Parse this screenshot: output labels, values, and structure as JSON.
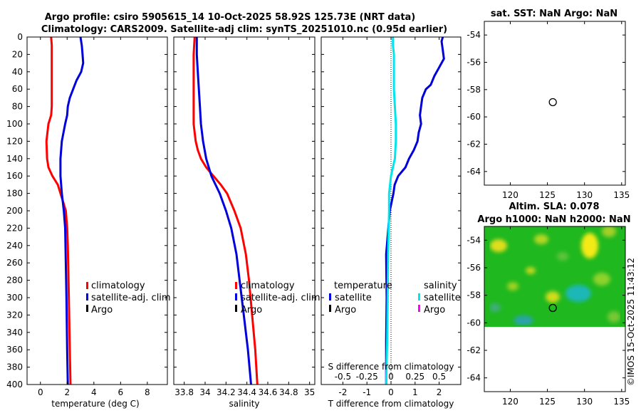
{
  "title": {
    "line1": "Argo profile: csiro 5905615_14 10-Oct-2025 58.92S 125.73E (NRT data)",
    "line2": "Climatology: CARS2009. Satellite-adj clim: synTS_20251010.nc (0.95d earlier)"
  },
  "watermark": "©IMOS 15-Oct-2025 11:43:12",
  "colors": {
    "climatology": "#ff0000",
    "satellite": "#0000dd",
    "argo": "#000000",
    "sal_satellite": "#00e5ee",
    "sal_argo": "#ff00ff"
  },
  "chart_data": [
    {
      "type": "line",
      "panel": "temperature",
      "xlabel": "temperature (deg C)",
      "ylabel": "",
      "xlim": [
        -1,
        9.5
      ],
      "ylim": [
        400,
        0
      ],
      "xticks": [
        "0",
        "2",
        "4",
        "6",
        "8"
      ],
      "yticks": [
        "0",
        "20",
        "40",
        "60",
        "80",
        "100",
        "120",
        "140",
        "160",
        "180",
        "200",
        "220",
        "240",
        "260",
        "280",
        "300",
        "320",
        "340",
        "360",
        "380",
        "400"
      ],
      "legend": [
        "climatology",
        "satellite-adj. clim",
        "Argo"
      ],
      "series": [
        {
          "name": "climatology",
          "depth": [
            0,
            10,
            20,
            40,
            60,
            80,
            90,
            100,
            120,
            140,
            150,
            160,
            170,
            180,
            190,
            200,
            220,
            240,
            280,
            320,
            360,
            400
          ],
          "values": [
            0.8,
            0.85,
            0.85,
            0.85,
            0.85,
            0.85,
            0.8,
            0.6,
            0.45,
            0.5,
            0.6,
            0.9,
            1.3,
            1.5,
            1.7,
            1.9,
            2.0,
            2.05,
            2.1,
            2.15,
            2.2,
            2.25
          ]
        },
        {
          "name": "satellite-adj. clim",
          "depth": [
            0,
            10,
            20,
            30,
            40,
            50,
            60,
            70,
            80,
            90,
            100,
            120,
            140,
            160,
            180,
            200,
            220,
            260,
            300,
            360,
            400
          ],
          "values": [
            3.0,
            3.1,
            3.15,
            3.2,
            3.05,
            2.7,
            2.45,
            2.2,
            2.05,
            2.0,
            1.85,
            1.6,
            1.5,
            1.5,
            1.6,
            1.75,
            1.85,
            1.9,
            1.95,
            2.0,
            2.05
          ]
        }
      ]
    },
    {
      "type": "line",
      "panel": "salinity",
      "xlabel": "salinity",
      "xlim": [
        33.7,
        35.05
      ],
      "ylim": [
        400,
        0
      ],
      "xticks": [
        "33.8",
        "34",
        "34.2",
        "34.4",
        "34.6",
        "34.8",
        "35"
      ],
      "legend": [
        "climatology",
        "satellite-adj. clim",
        "Argo"
      ],
      "series": [
        {
          "name": "climatology",
          "depth": [
            0,
            20,
            40,
            60,
            80,
            100,
            110,
            120,
            130,
            140,
            150,
            160,
            170,
            180,
            200,
            220,
            250,
            280,
            320,
            360,
            400
          ],
          "values": [
            33.9,
            33.89,
            33.89,
            33.89,
            33.89,
            33.89,
            33.9,
            33.91,
            33.93,
            33.96,
            34.01,
            34.08,
            34.15,
            34.21,
            34.28,
            34.34,
            34.39,
            34.42,
            34.45,
            34.48,
            34.5
          ]
        },
        {
          "name": "satellite-adj. clim",
          "depth": [
            0,
            20,
            40,
            60,
            80,
            100,
            120,
            140,
            160,
            180,
            200,
            220,
            250,
            280,
            320,
            360,
            400
          ],
          "values": [
            33.92,
            33.92,
            33.93,
            33.94,
            33.95,
            33.96,
            33.98,
            34.01,
            34.06,
            34.14,
            34.2,
            34.25,
            34.3,
            34.33,
            34.37,
            34.41,
            34.44
          ]
        }
      ]
    },
    {
      "type": "line",
      "panel": "difference",
      "xlabel": "T difference from climatology",
      "top_xlabel": "S difference from climatology",
      "xlim": [
        -2.9,
        2.9
      ],
      "ylim": [
        400,
        0
      ],
      "xticks": [
        "-2",
        "-1",
        "0",
        "1",
        "2"
      ],
      "top_xlim": [
        -0.725,
        0.725
      ],
      "top_xticks": [
        "-0.5",
        "-0.25",
        "0",
        "0.25",
        "0.5"
      ],
      "legend_left_title": "temperature",
      "legend_right_title": "salinity",
      "legend_left": [
        "satellite",
        "Argo"
      ],
      "legend_right": [
        "satellite",
        "Argo"
      ],
      "series": [
        {
          "name": "T satellite",
          "depth": [
            0,
            5,
            15,
            25,
            35,
            45,
            55,
            60,
            70,
            80,
            90,
            100,
            110,
            120,
            130,
            140,
            150,
            160,
            170,
            180,
            200,
            250,
            300,
            350,
            400
          ],
          "values": [
            2.15,
            2.1,
            2.15,
            2.2,
            2.0,
            1.8,
            1.65,
            1.45,
            1.3,
            1.25,
            1.2,
            1.25,
            1.15,
            1.1,
            0.95,
            0.75,
            0.6,
            0.3,
            0.15,
            0.1,
            -0.05,
            -0.2,
            -0.18,
            -0.2,
            -0.2
          ]
        },
        {
          "name": "S satellite",
          "depth": [
            0,
            10,
            20,
            40,
            60,
            80,
            100,
            120,
            140,
            160,
            180,
            200,
            250,
            300,
            350,
            400
          ],
          "values": [
            0.02,
            0.02,
            0.03,
            0.03,
            0.03,
            0.04,
            0.05,
            0.05,
            0.04,
            0.0,
            -0.02,
            -0.02,
            -0.03,
            -0.035,
            -0.04,
            -0.05
          ]
        }
      ]
    },
    {
      "type": "scatter",
      "panel": "sst-map",
      "title": "sat. SST: NaN Argo: NaN",
      "xlim": [
        116.5,
        135.5
      ],
      "ylim": [
        -65,
        -53
      ],
      "xticks": [
        "120",
        "125",
        "130",
        "135"
      ],
      "yticks": [
        "-54",
        "-56",
        "-58",
        "-60",
        "-62",
        "-64"
      ],
      "points": [
        {
          "lon": 125.73,
          "lat": -58.92
        }
      ]
    },
    {
      "type": "heatmap",
      "panel": "sla-map",
      "title": "Altim. SLA: 0.078",
      "subtitle": "Argo h1000: NaN h2000: NaN",
      "xlim": [
        116.5,
        135.5
      ],
      "ylim": [
        -65,
        -53
      ],
      "xticks": [
        "120",
        "125",
        "130",
        "135"
      ],
      "yticks": [
        "-54",
        "-56",
        "-58",
        "-60",
        "-62",
        "-64"
      ],
      "data_extent_lat": [
        -60,
        -53
      ],
      "points": [
        {
          "lon": 125.73,
          "lat": -58.92
        }
      ]
    }
  ]
}
